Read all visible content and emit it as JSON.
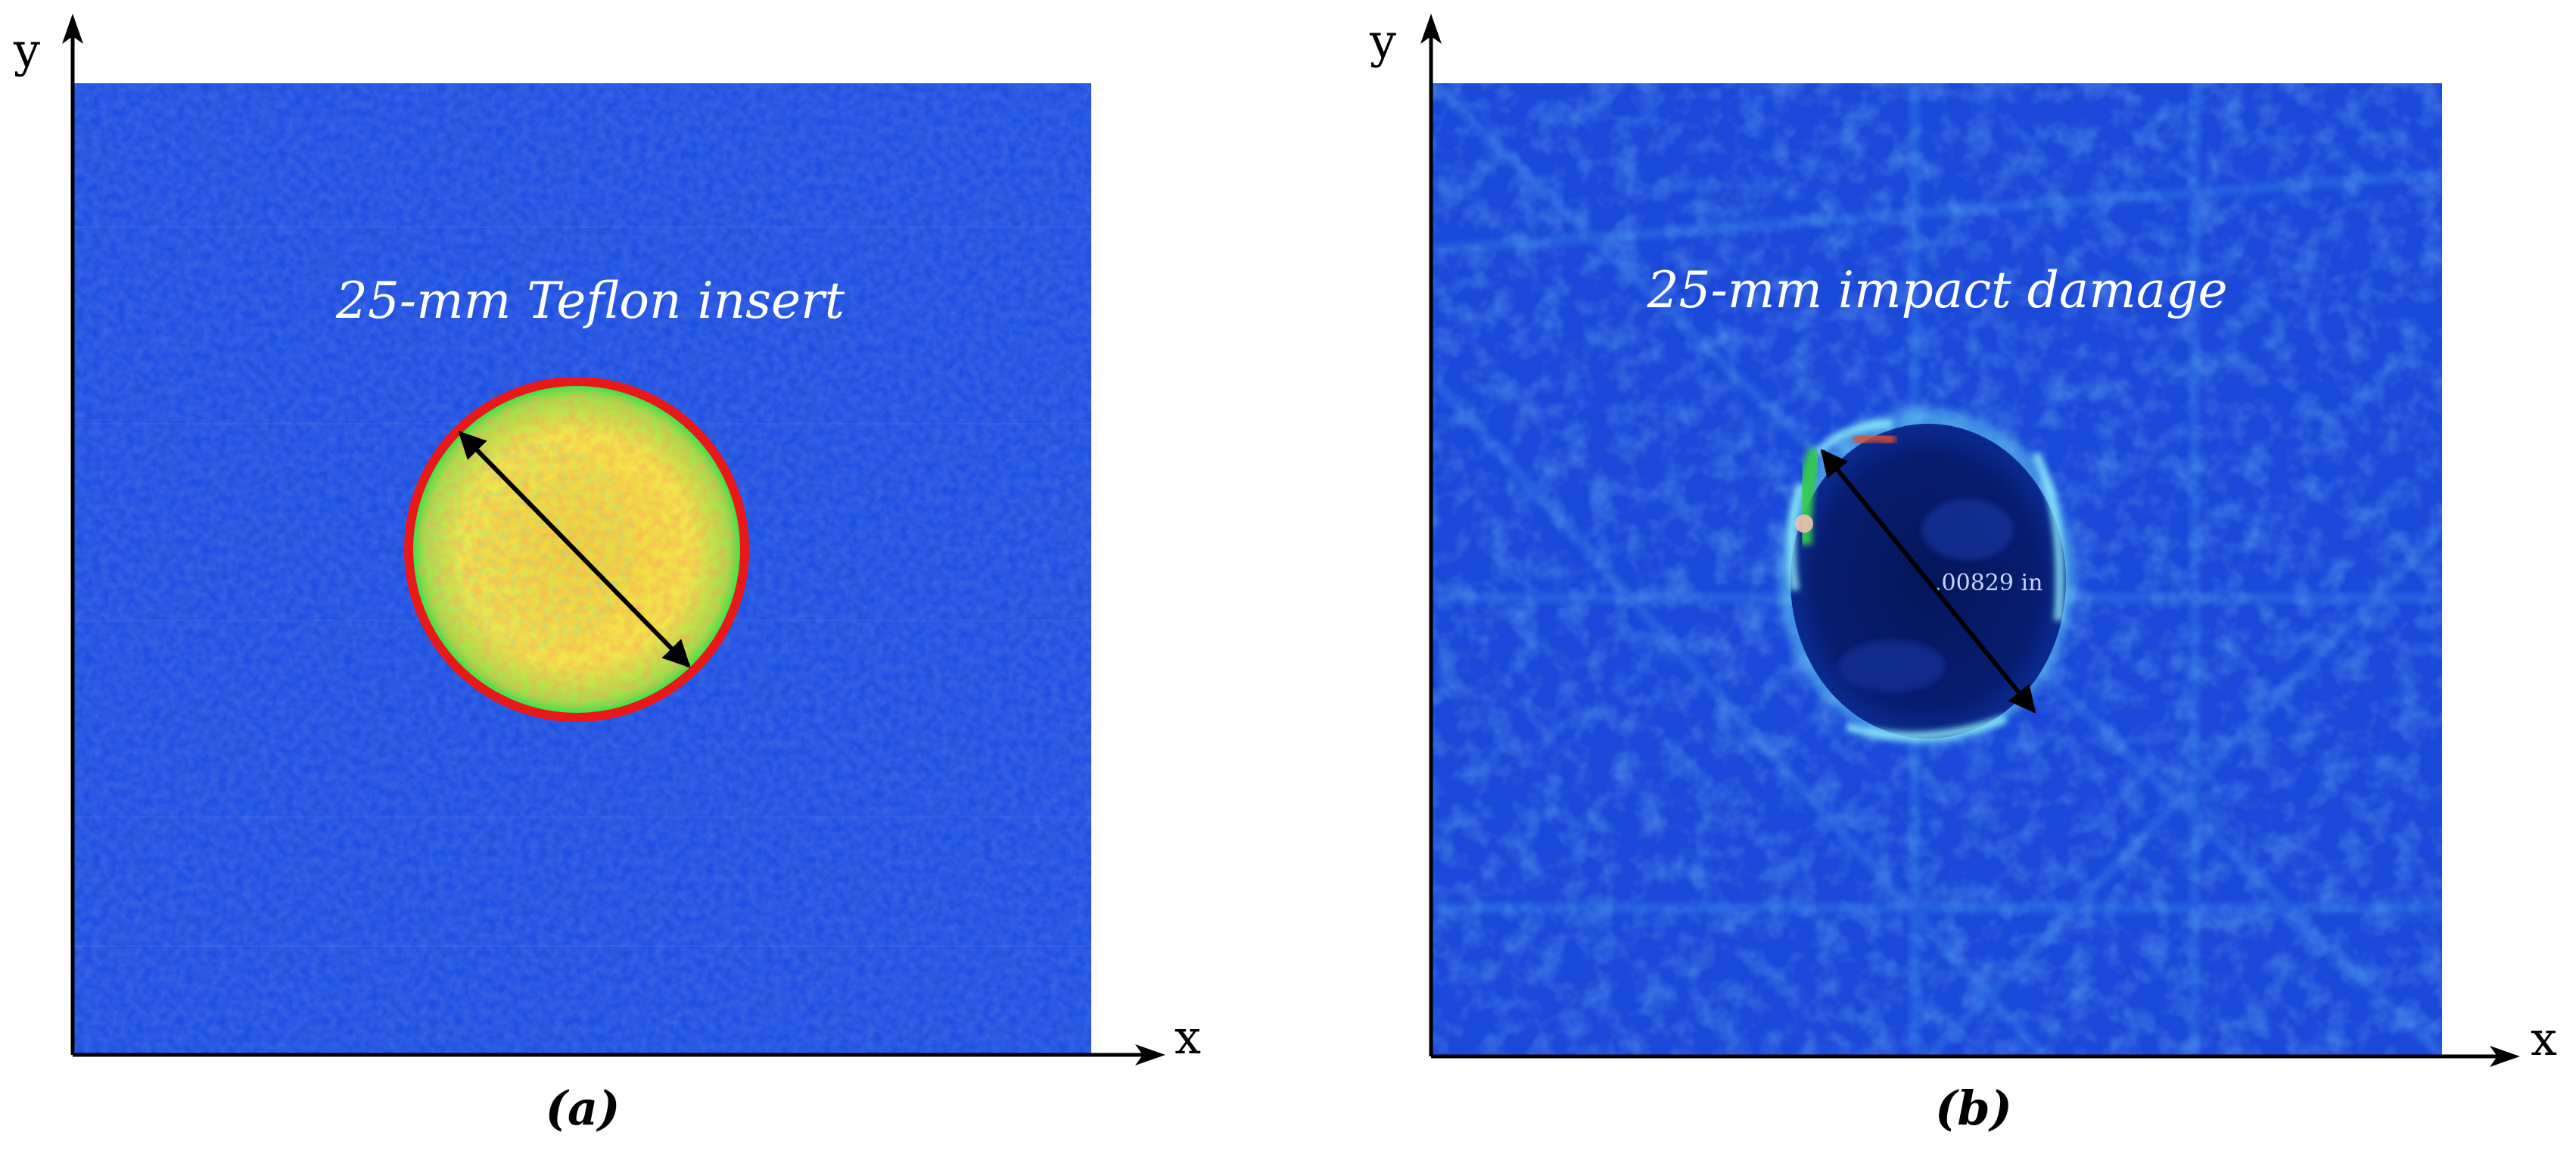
{
  "panels": [
    {
      "id": "a",
      "axis_x": "x",
      "axis_y": "y",
      "label": "25-mm Teflon insert",
      "caption": "(a)"
    },
    {
      "id": "b",
      "axis_x": "x",
      "axis_y": "y",
      "label": "25-mm impact damage",
      "measurement": ".00829 in",
      "caption": "(b)"
    }
  ],
  "colors": {
    "background_blue": "#1f4fe0",
    "defect_yellow": "#f2e84a",
    "defect_green": "#3ddc4c",
    "defect_red": "#e0502a",
    "outline_red": "#e81818",
    "damage_dark": "#051a66",
    "damage_cyan": "#6fe6f4",
    "axis": "#000000",
    "label_text": "#ffffff"
  }
}
